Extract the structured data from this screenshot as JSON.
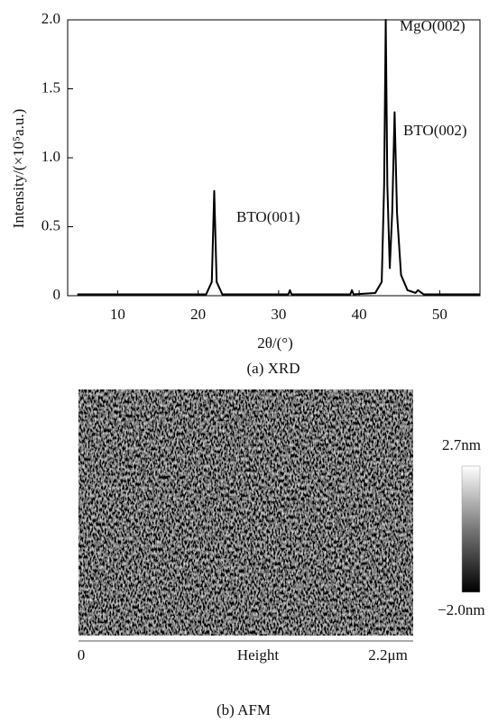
{
  "chart_data": {
    "type": "line",
    "ylabel": "Intensity/(×10⁵a.u.)",
    "xlabel": "2θ/(°)",
    "caption": "(a) XRD",
    "annotations": [
      "MgO(002)",
      "BTO(002)",
      "BTO(001)"
    ],
    "color": "#000000",
    "x": [
      5,
      10,
      15,
      20,
      21,
      21.7,
      22.0,
      22.3,
      23,
      25,
      30,
      31.2,
      31.4,
      31.6,
      35,
      38.9,
      39.1,
      39.3,
      42,
      42.8,
      43.1,
      43.3,
      43.5,
      43.8,
      44.1,
      44.4,
      44.7,
      45.2,
      46,
      47,
      47.3,
      48,
      50,
      55
    ],
    "values": [
      0.01,
      0.01,
      0.01,
      0.01,
      0.01,
      0.1,
      0.76,
      0.1,
      0.01,
      0.01,
      0.01,
      0.01,
      0.04,
      0.01,
      0.01,
      0.01,
      0.04,
      0.01,
      0.02,
      0.1,
      0.8,
      2.0,
      0.8,
      0.2,
      0.6,
      1.33,
      0.6,
      0.15,
      0.04,
      0.02,
      0.04,
      0.01,
      0.01,
      0.01
    ],
    "xlim": [
      3.8,
      55
    ],
    "xticks": [
      10,
      20,
      30,
      40,
      50
    ],
    "ylim": [
      0,
      2.0
    ],
    "yticks": [
      0,
      0.5,
      {
        "value": 1,
        "label": "1.0"
      },
      1.5,
      {
        "value": 2,
        "label": "2.0"
      }
    ]
  },
  "afm": {
    "caption": "(b) AFM",
    "colorbar": {
      "max_label": "2.7nm",
      "min_label": "−2.0nm"
    },
    "axis": {
      "start": "0",
      "label": "Height",
      "end": "2.2μm"
    }
  }
}
